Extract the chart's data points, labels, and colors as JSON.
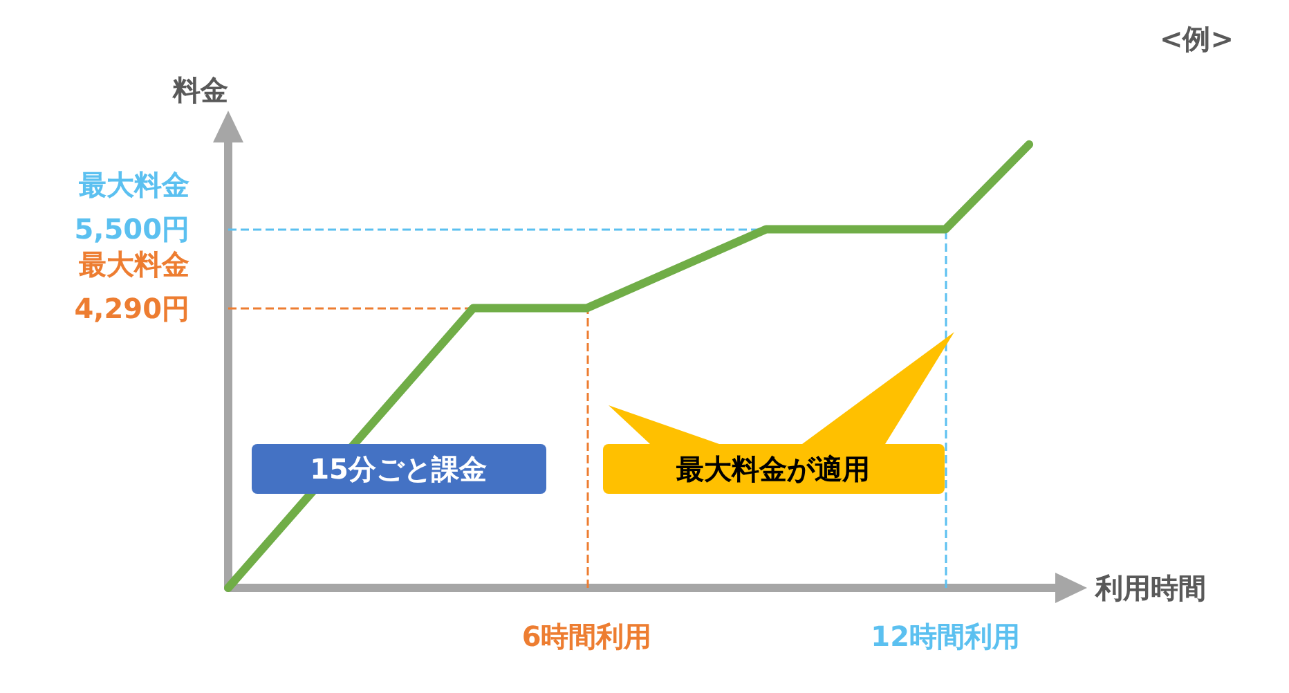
{
  "chart_data": {
    "type": "line",
    "xlabel": "利用時間",
    "ylabel": "料金",
    "x": [
      0,
      4.1,
      6,
      9,
      12,
      13.4
    ],
    "series": [
      {
        "color": "#70ad47",
        "values": [
          0,
          4290,
          4290,
          5500,
          5500,
          6800
        ]
      }
    ],
    "xlim": [
      0,
      14
    ],
    "ylim": [
      0,
      7000
    ],
    "xticks": [
      {
        "value": 6,
        "label": "6時間利用"
      },
      {
        "value": 12,
        "label": "12時間利用"
      }
    ],
    "yticks": [
      {
        "value": 4290,
        "label": "4,290円"
      },
      {
        "value": 5500,
        "label": "5,500円"
      }
    ],
    "ref_lines": [
      {
        "axis": "y",
        "value": 4290,
        "label": "最大料金",
        "color": "#ed7d31",
        "line_style": "dashed"
      },
      {
        "axis": "x",
        "value": 6,
        "color": "#ed7d31",
        "line_style": "dashed"
      },
      {
        "axis": "y",
        "value": 5500,
        "label": "最大料金",
        "color": "#5bc0f0",
        "line_style": "dashed"
      },
      {
        "axis": "x",
        "value": 12,
        "color": "#5bc0f0",
        "line_style": "dashed"
      }
    ],
    "annotations": [
      "<例>",
      "15分ごと課金",
      "最大料金が適用"
    ],
    "grid": false,
    "marker": "none",
    "line_style": "solid"
  }
}
